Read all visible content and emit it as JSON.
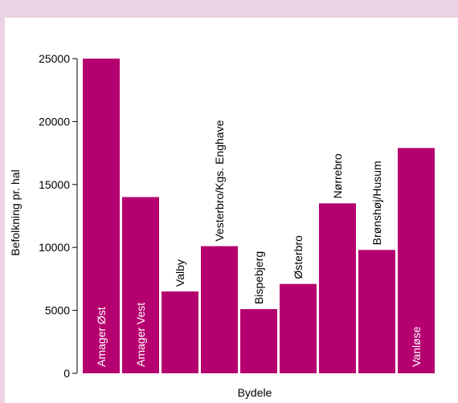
{
  "chart_data": {
    "type": "bar",
    "title": "",
    "xlabel": "Bydele",
    "ylabel": "Befolkning pr. hal",
    "ylim": [
      0,
      25000
    ],
    "yticks": [
      0,
      5000,
      10000,
      15000,
      20000,
      25000
    ],
    "grid": false,
    "legend": "none",
    "bar_color": "#b5006f",
    "categories": [
      "Amager Øst",
      "Amager Vest",
      "Valby",
      "Vesterbro/Kgs. Enghave",
      "Bispebjerg",
      "Østerbro",
      "Nørrebro",
      "Brønshøj/Husum",
      "Vanløse"
    ],
    "values": [
      25000,
      14000,
      6500,
      10100,
      5100,
      7100,
      13500,
      9800,
      17900
    ],
    "label_inside": [
      true,
      true,
      false,
      false,
      false,
      false,
      false,
      false,
      true
    ]
  }
}
